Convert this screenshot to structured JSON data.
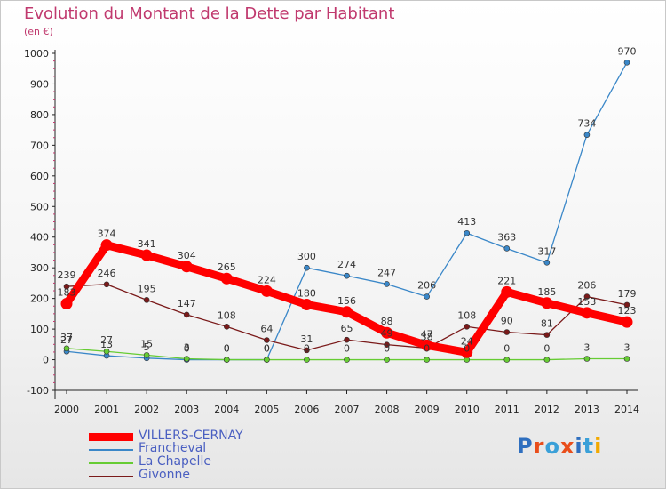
{
  "title": "Evolution du Montant de la Dette par Habitant",
  "subtitle": "(en €)",
  "logo": {
    "text": "Proxiti",
    "colors": [
      "#2f6fbf",
      "#e94e1b",
      "#3aa0d8",
      "#e94e1b",
      "#2f6fbf",
      "#3aa0d8",
      "#f2a900"
    ]
  },
  "chart_data": {
    "type": "line",
    "categories": [
      "2000",
      "2001",
      "2002",
      "2003",
      "2004",
      "2005",
      "2006",
      "2007",
      "2008",
      "2009",
      "2010",
      "2011",
      "2012",
      "2013",
      "2014"
    ],
    "ylim": [
      -100,
      1000
    ],
    "yticks": [
      -100,
      0,
      100,
      200,
      300,
      400,
      500,
      600,
      700,
      800,
      900,
      1000
    ],
    "grid": false,
    "legend_position": "bottom-left",
    "series": [
      {
        "name": "VILLERS-CERNAY",
        "color": "#ff0000",
        "values": [
          183,
          374,
          341,
          304,
          265,
          224,
          180,
          156,
          88,
          47,
          24,
          221,
          185,
          153,
          123
        ],
        "labels": [
          "183",
          "374",
          "341",
          "304",
          "265",
          "224",
          "180",
          "156",
          "88",
          "47",
          "24",
          "221",
          "185",
          "153",
          "123"
        ]
      },
      {
        "name": "Francheval",
        "color": "#3a87c8",
        "values": [
          27,
          13,
          5,
          0,
          0,
          0,
          300,
          274,
          247,
          206,
          413,
          363,
          317,
          734,
          970
        ],
        "labels": [
          "27",
          "13",
          "5",
          "0",
          "0",
          "0",
          "300",
          "274",
          "247",
          "206",
          "413",
          "363",
          "317",
          "734",
          "970"
        ]
      },
      {
        "name": "La Chapelle",
        "color": "#66cc33",
        "values": [
          37,
          27,
          15,
          3,
          0,
          0,
          0,
          0,
          0,
          0,
          0,
          0,
          0,
          3,
          3
        ],
        "labels": [
          "37",
          "27",
          "15",
          "3",
          "0",
          "0",
          "0",
          "0",
          "0",
          "0",
          "0",
          "0",
          "0",
          "3",
          "3"
        ]
      },
      {
        "name": "Givonne",
        "color": "#7a1a1a",
        "values": [
          239,
          246,
          195,
          147,
          108,
          64,
          31,
          65,
          49,
          38,
          108,
          90,
          81,
          206,
          179
        ],
        "labels": [
          "239",
          "246",
          "195",
          "147",
          "108",
          "64",
          "31",
          "65",
          "49",
          "38",
          "108",
          "90",
          "81",
          "206",
          "179"
        ]
      }
    ]
  }
}
